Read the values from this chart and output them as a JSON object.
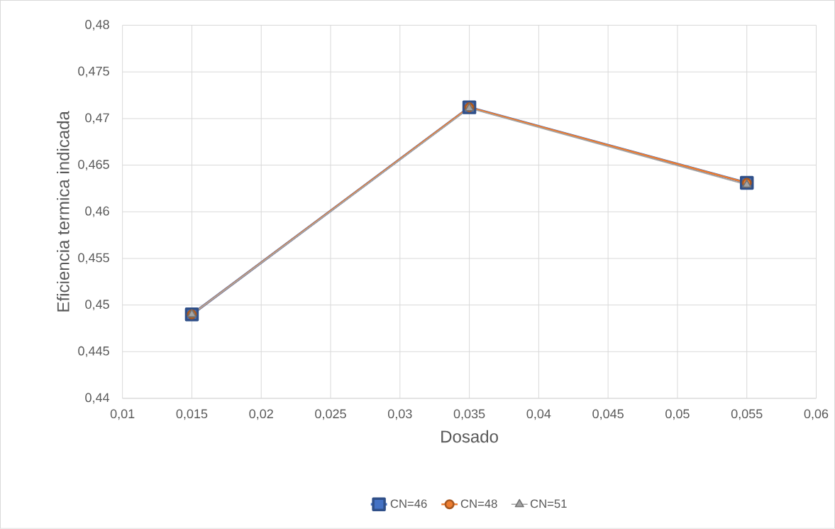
{
  "chart_data": {
    "type": "line",
    "xlabel": "Dosado",
    "ylabel": "Eficiencia termica indicada",
    "x": [
      0.015,
      0.035,
      0.055
    ],
    "series": [
      {
        "name": "CN=46",
        "color": "#4472c4",
        "marker": "square",
        "values": [
          0.449,
          0.4712,
          0.4631
        ]
      },
      {
        "name": "CN=48",
        "color": "#ed7d31",
        "marker": "circle",
        "values": [
          0.449,
          0.4712,
          0.4631
        ]
      },
      {
        "name": "CN=51",
        "color": "#a5a5a5",
        "marker": "triangle",
        "values": [
          0.449,
          0.4711,
          0.4629
        ]
      }
    ],
    "xlim": [
      0.01,
      0.06
    ],
    "xticks": [
      {
        "value": 0.01,
        "label": "0,01"
      },
      {
        "value": 0.015,
        "label": "0,015"
      },
      {
        "value": 0.02,
        "label": "0,02"
      },
      {
        "value": 0.025,
        "label": "0,025"
      },
      {
        "value": 0.03,
        "label": "0,03"
      },
      {
        "value": 0.035,
        "label": "0,035"
      },
      {
        "value": 0.04,
        "label": "0,04"
      },
      {
        "value": 0.045,
        "label": "0,045"
      },
      {
        "value": 0.05,
        "label": "0,05"
      },
      {
        "value": 0.055,
        "label": "0,055"
      },
      {
        "value": 0.06,
        "label": "0,06"
      }
    ],
    "ylim": [
      0.44,
      0.48
    ],
    "yticks": [
      {
        "value": 0.44,
        "label": "0,44"
      },
      {
        "value": 0.445,
        "label": "0,445"
      },
      {
        "value": 0.45,
        "label": "0,45"
      },
      {
        "value": 0.455,
        "label": "0,455"
      },
      {
        "value": 0.46,
        "label": "0,46"
      },
      {
        "value": 0.465,
        "label": "0,465"
      },
      {
        "value": 0.47,
        "label": "0,47"
      },
      {
        "value": 0.475,
        "label": "0,475"
      },
      {
        "value": 0.48,
        "label": "0,48"
      }
    ],
    "grid": true,
    "legend": "bottom",
    "line_style": "solid"
  }
}
